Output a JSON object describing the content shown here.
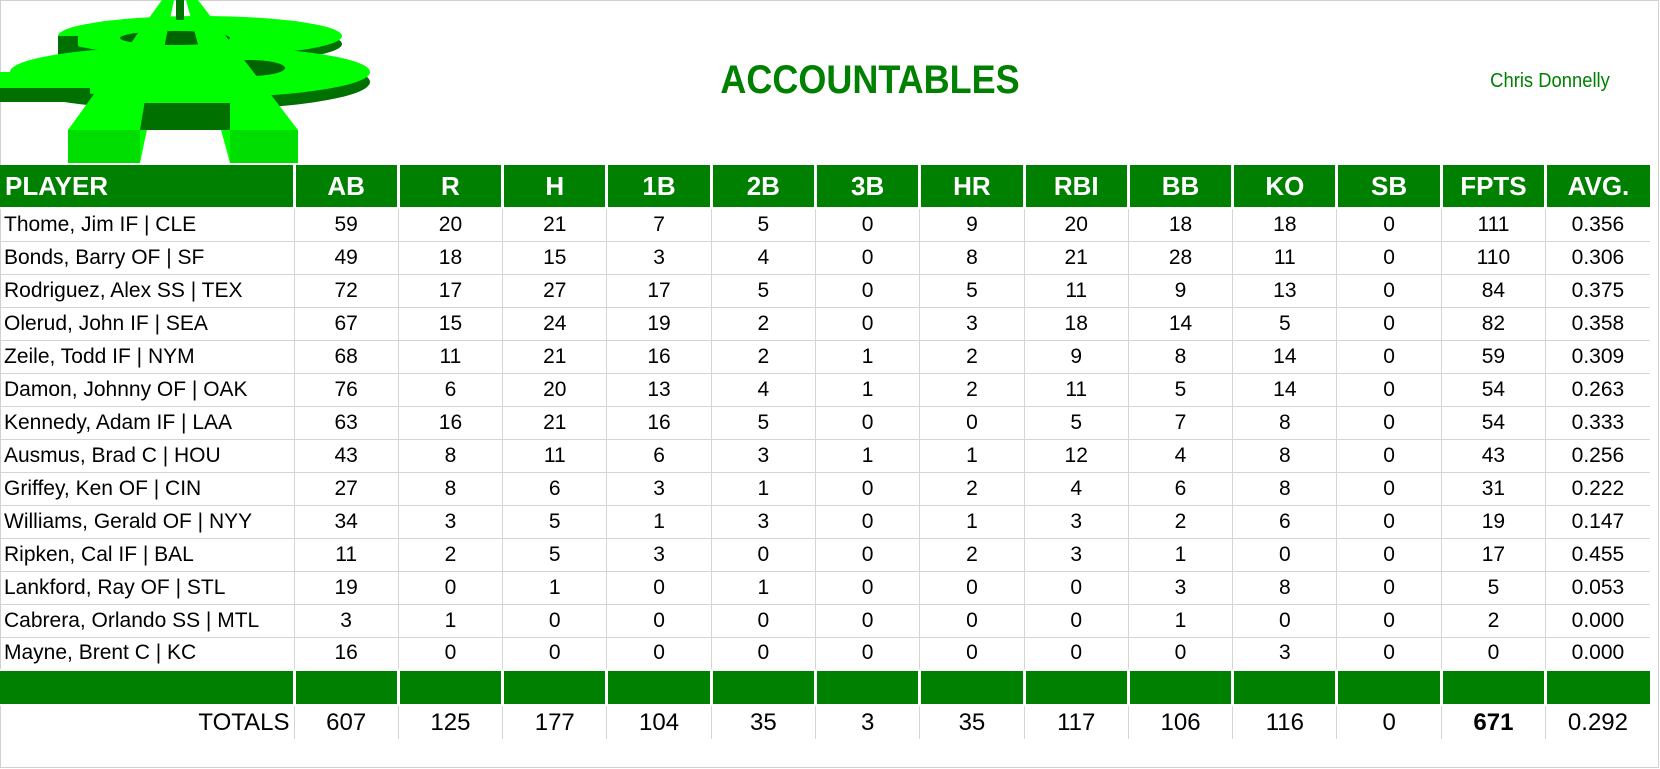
{
  "header": {
    "title": "ACCOUNTABLES",
    "owner": "Chris Donnelly",
    "logo": "dollar-a-logo-icon"
  },
  "colors": {
    "brand_green": "#008000",
    "logo_light": "#00ff00",
    "logo_dark": "#007a00",
    "header_text": "#ffffff",
    "grid": "#d4d4d4"
  },
  "table": {
    "columns": [
      "PLAYER",
      "AB",
      "R",
      "H",
      "1B",
      "2B",
      "3B",
      "HR",
      "RBI",
      "BB",
      "KO",
      "SB",
      "FPTS",
      "AVG."
    ],
    "rows": [
      [
        "Thome, Jim IF | CLE",
        "59",
        "20",
        "21",
        "7",
        "5",
        "0",
        "9",
        "20",
        "18",
        "18",
        "0",
        "111",
        "0.356"
      ],
      [
        "Bonds, Barry OF | SF",
        "49",
        "18",
        "15",
        "3",
        "4",
        "0",
        "8",
        "21",
        "28",
        "11",
        "0",
        "110",
        "0.306"
      ],
      [
        "Rodriguez, Alex SS | TEX",
        "72",
        "17",
        "27",
        "17",
        "5",
        "0",
        "5",
        "11",
        "9",
        "13",
        "0",
        "84",
        "0.375"
      ],
      [
        "Olerud, John IF | SEA",
        "67",
        "15",
        "24",
        "19",
        "2",
        "0",
        "3",
        "18",
        "14",
        "5",
        "0",
        "82",
        "0.358"
      ],
      [
        "Zeile, Todd IF | NYM",
        "68",
        "11",
        "21",
        "16",
        "2",
        "1",
        "2",
        "9",
        "8",
        "14",
        "0",
        "59",
        "0.309"
      ],
      [
        "Damon, Johnny OF | OAK",
        "76",
        "6",
        "20",
        "13",
        "4",
        "1",
        "2",
        "11",
        "5",
        "14",
        "0",
        "54",
        "0.263"
      ],
      [
        "Kennedy, Adam IF | LAA",
        "63",
        "16",
        "21",
        "16",
        "5",
        "0",
        "0",
        "5",
        "7",
        "8",
        "0",
        "54",
        "0.333"
      ],
      [
        "Ausmus, Brad C | HOU",
        "43",
        "8",
        "11",
        "6",
        "3",
        "1",
        "1",
        "12",
        "4",
        "8",
        "0",
        "43",
        "0.256"
      ],
      [
        "Griffey, Ken OF | CIN",
        "27",
        "8",
        "6",
        "3",
        "1",
        "0",
        "2",
        "4",
        "6",
        "8",
        "0",
        "31",
        "0.222"
      ],
      [
        "Williams, Gerald OF | NYY",
        "34",
        "3",
        "5",
        "1",
        "3",
        "0",
        "1",
        "3",
        "2",
        "6",
        "0",
        "19",
        "0.147"
      ],
      [
        "Ripken, Cal IF | BAL",
        "11",
        "2",
        "5",
        "3",
        "0",
        "0",
        "2",
        "3",
        "1",
        "0",
        "0",
        "17",
        "0.455"
      ],
      [
        "Lankford, Ray OF | STL",
        "19",
        "0",
        "1",
        "0",
        "1",
        "0",
        "0",
        "0",
        "3",
        "8",
        "0",
        "5",
        "0.053"
      ],
      [
        "Cabrera, Orlando SS | MTL",
        "3",
        "1",
        "0",
        "0",
        "0",
        "0",
        "0",
        "0",
        "1",
        "0",
        "0",
        "2",
        "0.000"
      ],
      [
        "Mayne, Brent C | KC",
        "16",
        "0",
        "0",
        "0",
        "0",
        "0",
        "0",
        "0",
        "0",
        "3",
        "0",
        "0",
        "0.000"
      ]
    ],
    "totals": [
      "TOTALS",
      "607",
      "125",
      "177",
      "104",
      "35",
      "3",
      "35",
      "117",
      "106",
      "116",
      "0",
      "671",
      "0.292"
    ]
  }
}
